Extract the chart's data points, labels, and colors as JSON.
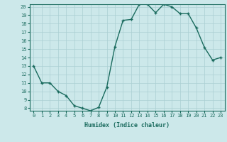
{
  "x": [
    0,
    1,
    2,
    3,
    4,
    5,
    6,
    7,
    8,
    9,
    10,
    11,
    12,
    13,
    14,
    15,
    16,
    17,
    18,
    19,
    20,
    21,
    22,
    23
  ],
  "y": [
    13,
    11,
    11,
    10,
    9.5,
    8.3,
    8.0,
    7.7,
    8.1,
    10.5,
    15.3,
    18.4,
    18.5,
    20.3,
    20.3,
    19.3,
    20.3,
    20.0,
    19.2,
    19.2,
    17.5,
    15.2,
    13.7,
    14.0
  ],
  "line_color": "#1a6b5e",
  "marker": "+",
  "marker_size": 3.5,
  "bg_color": "#cce8ea",
  "grid_color": "#aacfd2",
  "xlabel": "Humidex (Indice chaleur)",
  "ylim": [
    8,
    20
  ],
  "xlim": [
    -0.5,
    23.5
  ],
  "yticks": [
    8,
    9,
    10,
    11,
    12,
    13,
    14,
    15,
    16,
    17,
    18,
    19,
    20
  ],
  "xticks": [
    0,
    1,
    2,
    3,
    4,
    5,
    6,
    7,
    8,
    9,
    10,
    11,
    12,
    13,
    14,
    15,
    16,
    17,
    18,
    19,
    20,
    21,
    22,
    23
  ],
  "xlabel_fontsize": 6,
  "tick_fontsize": 5,
  "linewidth": 1.0
}
